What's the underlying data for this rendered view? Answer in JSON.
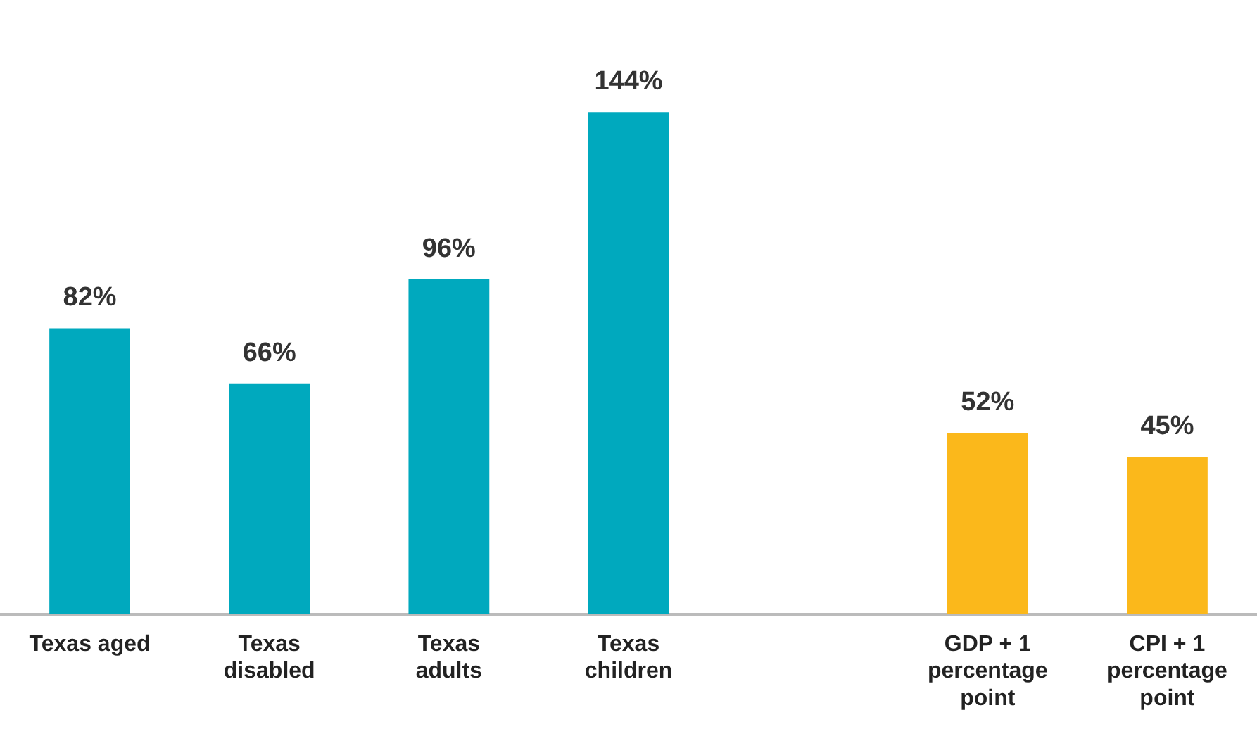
{
  "chart_data": {
    "type": "bar",
    "categories": [
      "Texas aged",
      "Texas disabled",
      "Texas adults",
      "Texas children",
      null,
      "GDP + 1 percentage point",
      "CPI + 1 percentage point"
    ],
    "values": [
      82,
      66,
      96,
      144,
      null,
      52,
      45
    ],
    "colors": [
      "#00a9be",
      "#00a9be",
      "#00a9be",
      "#00a9be",
      null,
      "#fbb81b",
      "#fbb81b"
    ],
    "value_labels": [
      "82%",
      "66%",
      "96%",
      "144%",
      null,
      "52%",
      "45%"
    ],
    "grid": false,
    "legend": false
  }
}
